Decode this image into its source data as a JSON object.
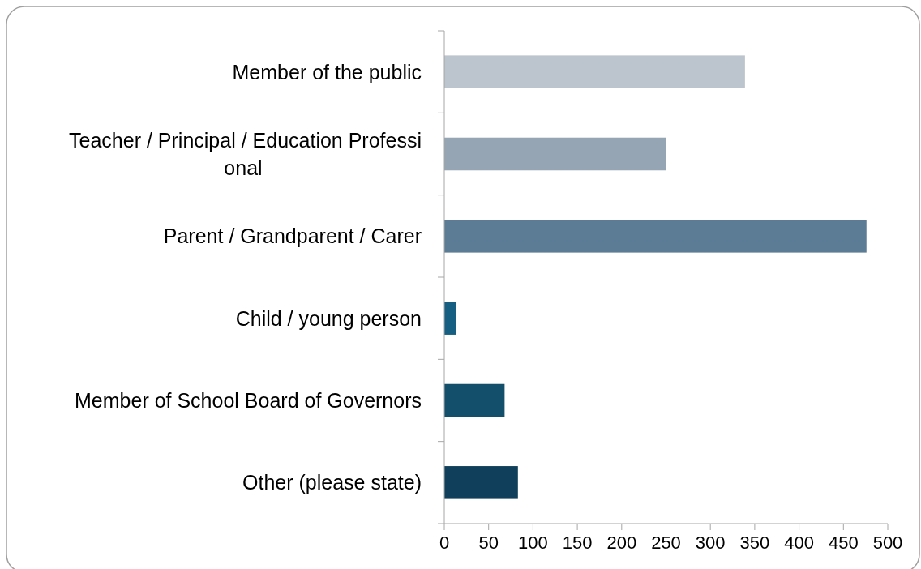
{
  "chart_data": {
    "type": "bar",
    "orientation": "horizontal",
    "categories": [
      "Member of the public",
      "Teacher / Principal / Education Professional",
      "Parent / Grandparent / Carer",
      "Child / young person",
      "Member of School Board of Governors",
      "Other (please state)"
    ],
    "values": [
      339,
      250,
      476,
      13,
      68,
      83
    ],
    "colors": [
      "#bcc4cd",
      "#95a5b4",
      "#5c7b95",
      "#175f82",
      "#134f6b",
      "#0f3f5a"
    ],
    "xlim": [
      0,
      500
    ],
    "xticks": [
      0,
      50,
      100,
      150,
      200,
      250,
      300,
      350,
      400,
      450,
      500
    ],
    "grid": false
  }
}
